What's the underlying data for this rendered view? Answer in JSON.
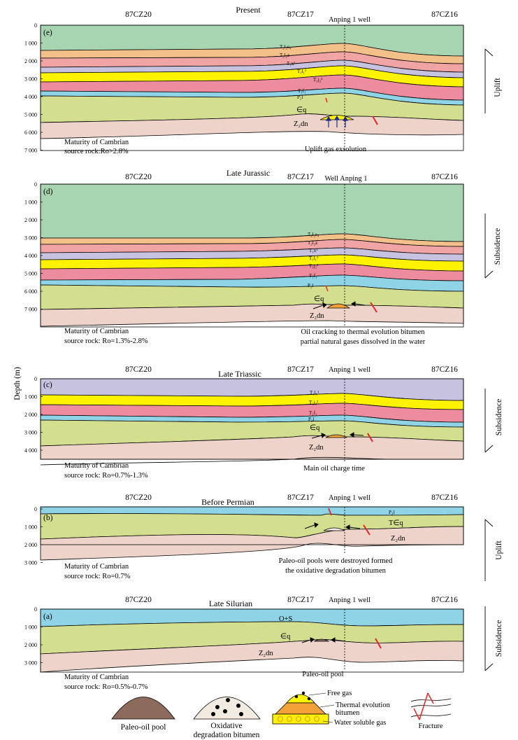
{
  "y_axis_label": "Depth (m)",
  "wells": {
    "left": "87CZ20",
    "mid": "87CZ17",
    "right": "87CZ16"
  },
  "panels": [
    {
      "id": "e",
      "tag": "(e)",
      "title": "Present",
      "well": "Anping 1 well",
      "ticks": [
        "0",
        "1 000",
        "2 000",
        "3 000",
        "4 000",
        "5 000",
        "6 000",
        "7 000"
      ],
      "maturity_1": "Maturity of Cambrian",
      "maturity_2": "source rock:Ro>2.8%",
      "note_1": "Uplift gas exsolution",
      "note_2": "",
      "movement": "Uplift",
      "layers": [
        "T₂l₂s₄",
        "T₂l₂z",
        "T₁x²",
        "T₁l₁¹",
        "T₁j₂²",
        "T₁f₁",
        "P₂l",
        "∈q",
        "Z₂dn"
      ]
    },
    {
      "id": "d",
      "tag": "(d)",
      "title": "Late Jurassic",
      "well": "Well Anping 1",
      "ticks": [
        "0",
        "1 000",
        "2 000",
        "3 000",
        "4 000",
        "5 000",
        "6 000",
        "7 000"
      ],
      "maturity_1": "Maturity of Cambrian",
      "maturity_2": "source rock: Ro=1.3%-2.8%",
      "note_1": "Oil cracking to thermal evolution bitumen",
      "note_2": "partial natural gases dissolved in the water",
      "movement": "Subsidence",
      "layers": [
        "T₂l₂s₄",
        "T₂l₂z",
        "T₁x¹",
        "T₁l₁¹",
        "T₁j₂²",
        "T₁f₁",
        "P₂l",
        "∈q",
        "Z₂dn"
      ]
    },
    {
      "id": "c",
      "tag": "(c)",
      "title": "Late Triassic",
      "well": "Anping 1  well",
      "ticks": [
        "0",
        "1 000",
        "2 000",
        "3 000",
        "4 000"
      ],
      "maturity_1": "Maturity of Cambrian",
      "maturity_2": "source rock: Ro=0.7%-1.3%",
      "note_1": "Main oil charge time",
      "note_2": "",
      "movement": "Subsidence",
      "layers": [
        "T₁l₁¹",
        "T₁j₂²",
        "T₁f₁",
        "P₂l",
        "∈q",
        "Z₂dn"
      ]
    },
    {
      "id": "b",
      "tag": "(b)",
      "title": "Before Permian",
      "well": "Anping 1 well",
      "ticks": [
        "0",
        "1 000",
        "2 000",
        "3 000"
      ],
      "maturity_1": "Maturity of Cambrian",
      "maturity_2": "source rock: Ro=0.7%",
      "note_1": "Paleo-oil pools were destroyed formed",
      "note_2": "the oxidative degradation bitumen",
      "movement": "Uplift",
      "layers": [
        "P₂l",
        "T∈q",
        "Z₂dn"
      ]
    },
    {
      "id": "a",
      "tag": "(a)",
      "title": "Late Silurian",
      "well": "Anping 1 well",
      "ticks": [
        "0",
        "1 000",
        "2 000",
        "3 000"
      ],
      "maturity_1": "Maturity of Cambrian",
      "maturity_2": "source rock: Ro=0.5%-0.7%",
      "note_1": "Paleo-oil pool",
      "note_2": "",
      "movement": "Subsidence",
      "layers": [
        "O+S",
        "∈q",
        "Z₂dn"
      ]
    }
  ],
  "legend": {
    "paleo_oil_pool": "Paleo-oil pool",
    "oxidative_1": "Oxidative",
    "oxidative_2": "degradation bitumen",
    "free_gas": "Free gas",
    "thermal_1": "Thermal evolution",
    "thermal_2": "bitumen",
    "water_gas": "Water soluble gas",
    "fracture": "Fracture"
  },
  "colors": {
    "green_top": "#a8d5b1",
    "orange": "#f4c08a",
    "salmon": "#f1a4a4",
    "lavender": "#c6c2df",
    "yellow": "#fdf200",
    "pink": "#ec8c9e",
    "cyan": "#8ed3e6",
    "olive": "#d3df8f",
    "sand": "#edd3ca",
    "fracture_red": "#e2252b"
  }
}
